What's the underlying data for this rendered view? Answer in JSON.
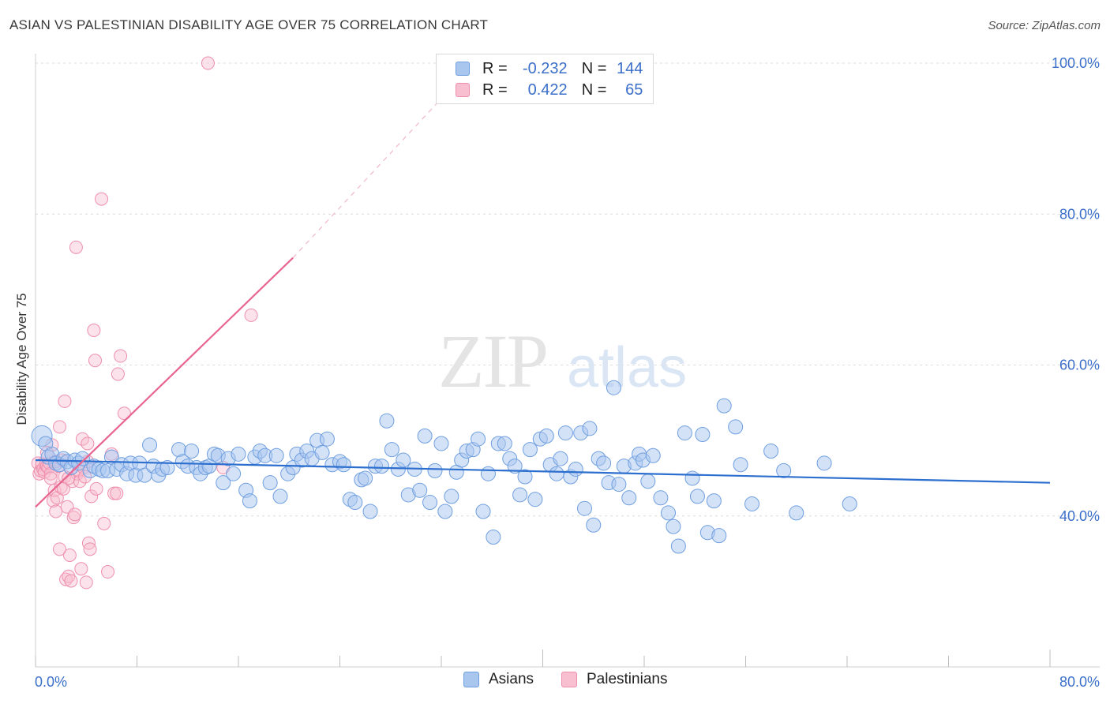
{
  "title": "ASIAN VS PALESTINIAN DISABILITY AGE OVER 75 CORRELATION CHART",
  "source": "Source: ZipAtlas.com",
  "watermark": {
    "zip": "ZIP",
    "atlas": "atlas"
  },
  "legend": {
    "r_label": "R =",
    "n_label": "N =",
    "rows": [
      {
        "r": "-0.232",
        "n": "144"
      },
      {
        "r": "0.422",
        "n": "65"
      }
    ]
  },
  "bottom_legend": [
    "Asians",
    "Palestinians"
  ],
  "colors": {
    "asian_fill": "#a9c6ef",
    "asian_stroke": "#6f9fe0",
    "asian_line": "#2d6fcf",
    "pal_fill": "#f8bfd1",
    "pal_stroke": "#ee8fae",
    "pal_line": "#e8658f",
    "grid": "#dcdcdc",
    "axis_text": "#3b6fc9"
  },
  "chart_data": {
    "type": "scatter",
    "title": "ASIAN VS PALESTINIAN DISABILITY AGE OVER 75 CORRELATION CHART",
    "xlabel": "",
    "ylabel": "Disability Age Over 75",
    "xlim": [
      0,
      80
    ],
    "ylim": [
      20,
      100
    ],
    "x_tick_labels": [
      "0.0%",
      "80.0%"
    ],
    "y_ticks": [
      40,
      60,
      80,
      100
    ],
    "y_tick_labels": [
      "40.0%",
      "60.0%",
      "80.0%",
      "100.0%"
    ],
    "grid": "horizontal dashed",
    "legend_position": "top-center",
    "series": [
      {
        "name": "Asians",
        "r": -0.232,
        "n": 144,
        "trend": {
          "x": [
            0,
            80
          ],
          "y": [
            47.4,
            44.4
          ],
          "style": "solid"
        },
        "points": [
          [
            0.5,
            50.6
          ],
          [
            0.8,
            49.6
          ],
          [
            1.0,
            47.8
          ],
          [
            1.3,
            48.2
          ],
          [
            1.6,
            47.0
          ],
          [
            1.9,
            46.8
          ],
          [
            2.2,
            47.6
          ],
          [
            2.5,
            47.2
          ],
          [
            2.8,
            46.4
          ],
          [
            3.1,
            47.4
          ],
          [
            3.4,
            47.0
          ],
          [
            3.7,
            47.6
          ],
          [
            4.3,
            46.0
          ],
          [
            4.6,
            46.6
          ],
          [
            5.0,
            46.2
          ],
          [
            5.3,
            46.0
          ],
          [
            5.7,
            46.0
          ],
          [
            6.0,
            47.8
          ],
          [
            6.4,
            46.2
          ],
          [
            6.8,
            46.8
          ],
          [
            7.2,
            45.6
          ],
          [
            7.5,
            47.0
          ],
          [
            7.9,
            45.4
          ],
          [
            8.2,
            47.0
          ],
          [
            8.6,
            45.4
          ],
          [
            9.0,
            49.4
          ],
          [
            9.3,
            46.6
          ],
          [
            9.7,
            45.4
          ],
          [
            10.0,
            46.2
          ],
          [
            10.4,
            46.4
          ],
          [
            11.3,
            48.8
          ],
          [
            11.6,
            47.2
          ],
          [
            12.0,
            46.6
          ],
          [
            12.3,
            48.6
          ],
          [
            12.7,
            46.4
          ],
          [
            13.0,
            45.6
          ],
          [
            13.4,
            46.4
          ],
          [
            13.7,
            46.6
          ],
          [
            14.1,
            48.2
          ],
          [
            14.4,
            48.0
          ],
          [
            14.8,
            44.4
          ],
          [
            15.2,
            47.6
          ],
          [
            15.6,
            45.6
          ],
          [
            16.0,
            48.2
          ],
          [
            16.6,
            43.4
          ],
          [
            16.9,
            42.0
          ],
          [
            17.3,
            47.8
          ],
          [
            17.7,
            48.6
          ],
          [
            18.1,
            48.0
          ],
          [
            18.5,
            44.4
          ],
          [
            19.0,
            48.0
          ],
          [
            19.3,
            42.6
          ],
          [
            19.9,
            45.6
          ],
          [
            20.3,
            46.4
          ],
          [
            20.6,
            48.2
          ],
          [
            21.0,
            47.4
          ],
          [
            21.4,
            48.6
          ],
          [
            21.8,
            47.6
          ],
          [
            22.2,
            50.0
          ],
          [
            22.6,
            48.4
          ],
          [
            23.0,
            50.2
          ],
          [
            23.4,
            46.8
          ],
          [
            24.0,
            47.2
          ],
          [
            24.3,
            46.8
          ],
          [
            24.8,
            42.2
          ],
          [
            25.2,
            41.8
          ],
          [
            25.7,
            44.8
          ],
          [
            26.0,
            45.0
          ],
          [
            26.4,
            40.6
          ],
          [
            26.8,
            46.6
          ],
          [
            27.3,
            46.6
          ],
          [
            27.7,
            52.6
          ],
          [
            28.1,
            48.8
          ],
          [
            28.6,
            46.2
          ],
          [
            29.0,
            47.4
          ],
          [
            29.4,
            42.8
          ],
          [
            29.9,
            46.2
          ],
          [
            30.3,
            43.4
          ],
          [
            30.7,
            50.6
          ],
          [
            31.1,
            41.8
          ],
          [
            31.5,
            46.0
          ],
          [
            32.0,
            49.6
          ],
          [
            32.3,
            40.6
          ],
          [
            32.8,
            42.6
          ],
          [
            33.2,
            45.8
          ],
          [
            33.6,
            47.4
          ],
          [
            34.0,
            48.6
          ],
          [
            34.5,
            48.8
          ],
          [
            34.9,
            50.2
          ],
          [
            35.3,
            40.6
          ],
          [
            35.7,
            45.6
          ],
          [
            36.1,
            37.2
          ],
          [
            36.5,
            49.6
          ],
          [
            37.0,
            49.6
          ],
          [
            37.4,
            47.6
          ],
          [
            37.8,
            46.6
          ],
          [
            38.2,
            42.8
          ],
          [
            38.6,
            45.2
          ],
          [
            39.0,
            48.8
          ],
          [
            39.4,
            42.2
          ],
          [
            39.8,
            50.2
          ],
          [
            40.3,
            50.6
          ],
          [
            40.6,
            46.8
          ],
          [
            41.1,
            45.6
          ],
          [
            41.4,
            47.6
          ],
          [
            41.8,
            51.0
          ],
          [
            42.2,
            45.2
          ],
          [
            42.6,
            46.2
          ],
          [
            43.0,
            51.0
          ],
          [
            43.3,
            41.0
          ],
          [
            43.7,
            51.6
          ],
          [
            44.0,
            38.8
          ],
          [
            44.4,
            47.6
          ],
          [
            44.8,
            47.0
          ],
          [
            45.2,
            44.4
          ],
          [
            45.6,
            57.0
          ],
          [
            46.0,
            44.2
          ],
          [
            46.4,
            46.6
          ],
          [
            46.8,
            42.4
          ],
          [
            47.3,
            47.0
          ],
          [
            47.6,
            48.2
          ],
          [
            47.9,
            47.4
          ],
          [
            48.3,
            44.6
          ],
          [
            48.7,
            48.0
          ],
          [
            49.3,
            42.4
          ],
          [
            49.9,
            40.4
          ],
          [
            50.3,
            38.6
          ],
          [
            50.7,
            36.0
          ],
          [
            51.2,
            51.0
          ],
          [
            51.8,
            45.0
          ],
          [
            52.2,
            42.6
          ],
          [
            52.6,
            50.8
          ],
          [
            53.0,
            37.8
          ],
          [
            53.5,
            42.0
          ],
          [
            53.9,
            37.4
          ],
          [
            54.3,
            54.6
          ],
          [
            55.2,
            51.8
          ],
          [
            56.5,
            41.6
          ],
          [
            58.0,
            48.6
          ],
          [
            55.6,
            46.8
          ],
          [
            59.0,
            46.0
          ],
          [
            60.0,
            40.4
          ],
          [
            62.2,
            47.0
          ],
          [
            64.2,
            41.6
          ]
        ]
      },
      {
        "name": "Palestinians",
        "r": 0.422,
        "n": 65,
        "trend": {
          "x": [
            0,
            20.3
          ],
          "y": [
            41.2,
            74.2
          ],
          "dashed_to": [
            32.0,
            95.3
          ],
          "style": "solid then dashed"
        },
        "points": [
          [
            0.2,
            47.0
          ],
          [
            0.3,
            45.6
          ],
          [
            0.4,
            46.0
          ],
          [
            0.5,
            46.8
          ],
          [
            0.6,
            46.2
          ],
          [
            0.7,
            45.8
          ],
          [
            0.8,
            46.8
          ],
          [
            0.9,
            46.6
          ],
          [
            1.0,
            46.4
          ],
          [
            1.1,
            47.0
          ],
          [
            1.2,
            45.6
          ],
          [
            1.3,
            49.4
          ],
          [
            1.4,
            42.0
          ],
          [
            1.5,
            43.4
          ],
          [
            1.6,
            40.6
          ],
          [
            1.7,
            42.4
          ],
          [
            1.8,
            46.6
          ],
          [
            1.9,
            51.8
          ],
          [
            2.0,
            43.8
          ],
          [
            2.1,
            47.4
          ],
          [
            2.2,
            43.6
          ],
          [
            2.3,
            45.2
          ],
          [
            2.4,
            31.6
          ],
          [
            2.5,
            41.2
          ],
          [
            2.6,
            32.0
          ],
          [
            2.7,
            34.8
          ],
          [
            2.8,
            31.4
          ],
          [
            2.9,
            44.6
          ],
          [
            3.0,
            39.8
          ],
          [
            3.1,
            40.2
          ],
          [
            3.2,
            75.6
          ],
          [
            3.3,
            45.6
          ],
          [
            3.4,
            46.0
          ],
          [
            3.5,
            44.6
          ],
          [
            3.6,
            33.0
          ],
          [
            3.7,
            50.2
          ],
          [
            3.8,
            46.4
          ],
          [
            3.9,
            45.2
          ],
          [
            4.0,
            31.2
          ],
          [
            4.1,
            47.2
          ],
          [
            4.2,
            36.4
          ],
          [
            4.3,
            35.6
          ],
          [
            4.4,
            42.6
          ],
          [
            4.6,
            64.6
          ],
          [
            4.7,
            60.6
          ],
          [
            4.8,
            43.6
          ],
          [
            5.2,
            82.0
          ],
          [
            5.4,
            39.0
          ],
          [
            5.7,
            32.6
          ],
          [
            6.0,
            48.2
          ],
          [
            6.2,
            43.0
          ],
          [
            6.4,
            43.0
          ],
          [
            6.5,
            58.8
          ],
          [
            6.7,
            61.2
          ],
          [
            7.0,
            53.6
          ],
          [
            2.3,
            55.2
          ],
          [
            1.9,
            35.6
          ],
          [
            4.1,
            49.6
          ],
          [
            2.6,
            45.0
          ],
          [
            1.6,
            47.2
          ],
          [
            13.6,
            100.0
          ],
          [
            17.0,
            66.6
          ],
          [
            14.8,
            46.4
          ],
          [
            1.2,
            45.0
          ],
          [
            0.9,
            48.4
          ]
        ]
      }
    ]
  }
}
